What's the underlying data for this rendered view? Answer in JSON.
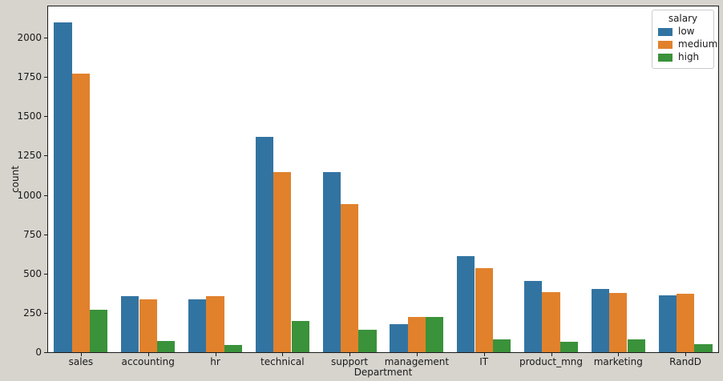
{
  "figure": {
    "background_color": "#d7d4ce",
    "plot_background_color": "#ffffff",
    "spine_color": "#1a1a1a",
    "text_color": "#1a1a1a"
  },
  "chart_data": {
    "type": "bar",
    "title": "",
    "xlabel": "Department",
    "ylabel": "count",
    "categories": [
      "sales",
      "accounting",
      "hr",
      "technical",
      "support",
      "management",
      "IT",
      "product_mng",
      "marketing",
      "RandD"
    ],
    "series": [
      {
        "name": "low",
        "color": "#3274a1",
        "values": [
          2099,
          358,
          335,
          1372,
          1146,
          180,
          609,
          451,
          402,
          364
        ]
      },
      {
        "name": "medium",
        "color": "#e1812c",
        "values": [
          1772,
          335,
          359,
          1147,
          942,
          225,
          535,
          383,
          376,
          372
        ]
      },
      {
        "name": "high",
        "color": "#3a923a",
        "values": [
          269,
          74,
          45,
          201,
          141,
          225,
          83,
          68,
          80,
          51
        ]
      }
    ],
    "yticks": [
      0,
      250,
      500,
      750,
      1000,
      1250,
      1500,
      1750,
      2000
    ],
    "ylim": [
      0,
      2204
    ],
    "grid": false,
    "legend": {
      "title": "salary",
      "position": "upper right"
    }
  }
}
